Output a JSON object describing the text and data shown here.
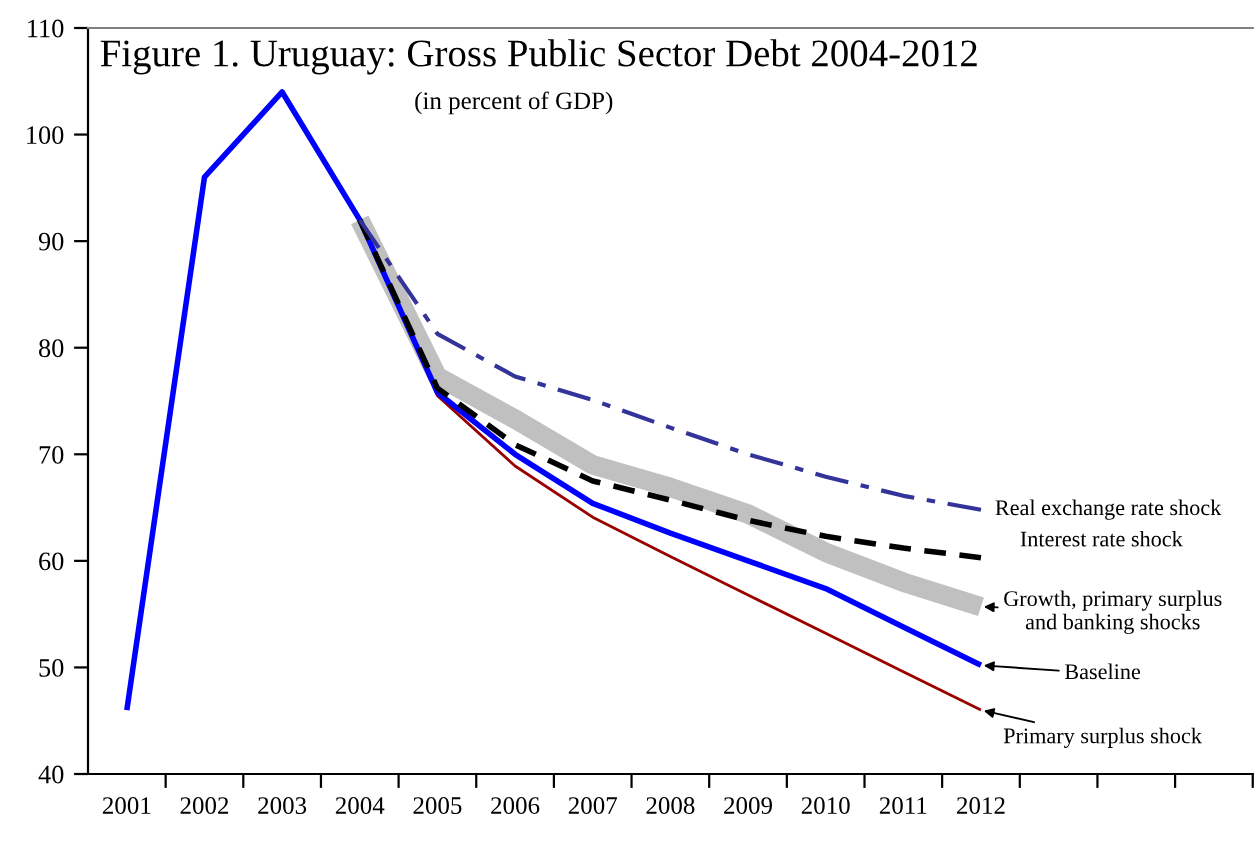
{
  "chart_data": {
    "type": "line",
    "title": "Figure 1. Uruguay: Gross Public Sector Debt 2004-2012",
    "subtitle": "(in percent of GDP)",
    "categories": [
      "2001",
      "2002",
      "2003",
      "2004",
      "2005",
      "2006",
      "2007",
      "2008",
      "2009",
      "2010",
      "2011",
      "2012",
      null,
      null,
      null
    ],
    "ylim": [
      40,
      110
    ],
    "yticks": [
      40,
      50,
      60,
      70,
      80,
      90,
      100,
      110
    ],
    "grid": false,
    "legend": "right",
    "marker": "none",
    "series": [
      {
        "name": "Growth, primary surplus and banking shocks",
        "color": "#c0c0c0",
        "line_style": "solid",
        "values": [
          null,
          null,
          null,
          92,
          77.3,
          73.3,
          69,
          66.9,
          64.4,
          60.8,
          58,
          55.7,
          null,
          null,
          null
        ]
      },
      {
        "name": "Real exchange rate shock",
        "color": "#333399",
        "line_style": "dashdot",
        "values": [
          null,
          null,
          null,
          92,
          81.3,
          77.3,
          75.1,
          72.5,
          70,
          67.9,
          66.1,
          64.8,
          null,
          null,
          null
        ]
      },
      {
        "name": "Interest rate shock",
        "color": "#000000",
        "line_style": "dashed",
        "values": [
          null,
          null,
          null,
          92,
          76.2,
          70.9,
          67.5,
          65.7,
          63.8,
          62.3,
          61.2,
          60.3,
          null,
          null,
          null
        ]
      },
      {
        "name": "Primary surplus shock",
        "color": "#990000",
        "line_style": "solid",
        "values": [
          null,
          null,
          null,
          92,
          75.5,
          68.9,
          64.1,
          60.4,
          56.8,
          53.2,
          49.6,
          46,
          null,
          null,
          null
        ]
      },
      {
        "name": "Baseline",
        "color": "#0000ff",
        "line_style": "solid",
        "values": [
          46,
          96,
          104,
          92,
          75.8,
          70,
          65.4,
          62.6,
          60,
          57.4,
          53.8,
          50.2,
          null,
          null,
          null
        ]
      }
    ]
  }
}
